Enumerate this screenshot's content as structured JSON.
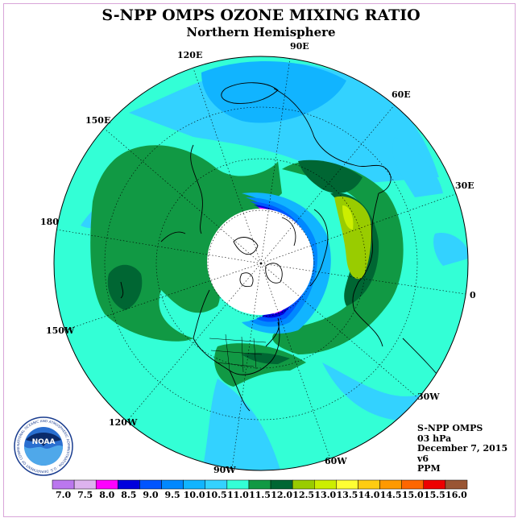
{
  "title": "S-NPP OMPS OZONE MIXING RATIO",
  "subtitle": "Northern Hemisphere",
  "longitude_labels": [
    "90E",
    "60E",
    "30E",
    "0",
    "30W",
    "60W",
    "90W",
    "120W",
    "150W",
    "180",
    "150E",
    "120E"
  ],
  "info": {
    "instrument": "S-NPP OMPS",
    "level": "03 hPa",
    "date": "December 7, 2015",
    "version": "v6",
    "units": "PPM"
  },
  "logo": {
    "name": "NOAA",
    "text": "NATIONAL OCEANIC AND ATMOSPHERIC ADMINISTRATION · U.S. DEPARTMENT OF COMMERCE"
  },
  "colorbar": {
    "values": [
      "7.0",
      "7.5",
      "8.0",
      "8.5",
      "9.0",
      "9.5",
      "10.0",
      "10.5",
      "11.0",
      "11.5",
      "12.0",
      "12.5",
      "13.0",
      "13.5",
      "14.0",
      "14.5",
      "15.0",
      "15.5",
      "16.0"
    ],
    "colors": [
      "#bb77ee",
      "#ddb3ee",
      "#ff00ff",
      "#0000dd",
      "#0055ff",
      "#0088ff",
      "#11b4ff",
      "#33d2ff",
      "#33ffd6",
      "#119944",
      "#006633",
      "#99cc00",
      "#ccee00",
      "#ffff33",
      "#ffcc11",
      "#ff9900",
      "#ff6600",
      "#ee0000",
      "#995533"
    ]
  },
  "colors": {
    "ocean_base": "#33ffd6",
    "mid_green": "#119944",
    "dark_green": "#006633",
    "light_blue": "#33d2ff",
    "mid_blue": "#11b4ff",
    "yellow_green": "#99cc00",
    "no_data": "#ffffff"
  }
}
